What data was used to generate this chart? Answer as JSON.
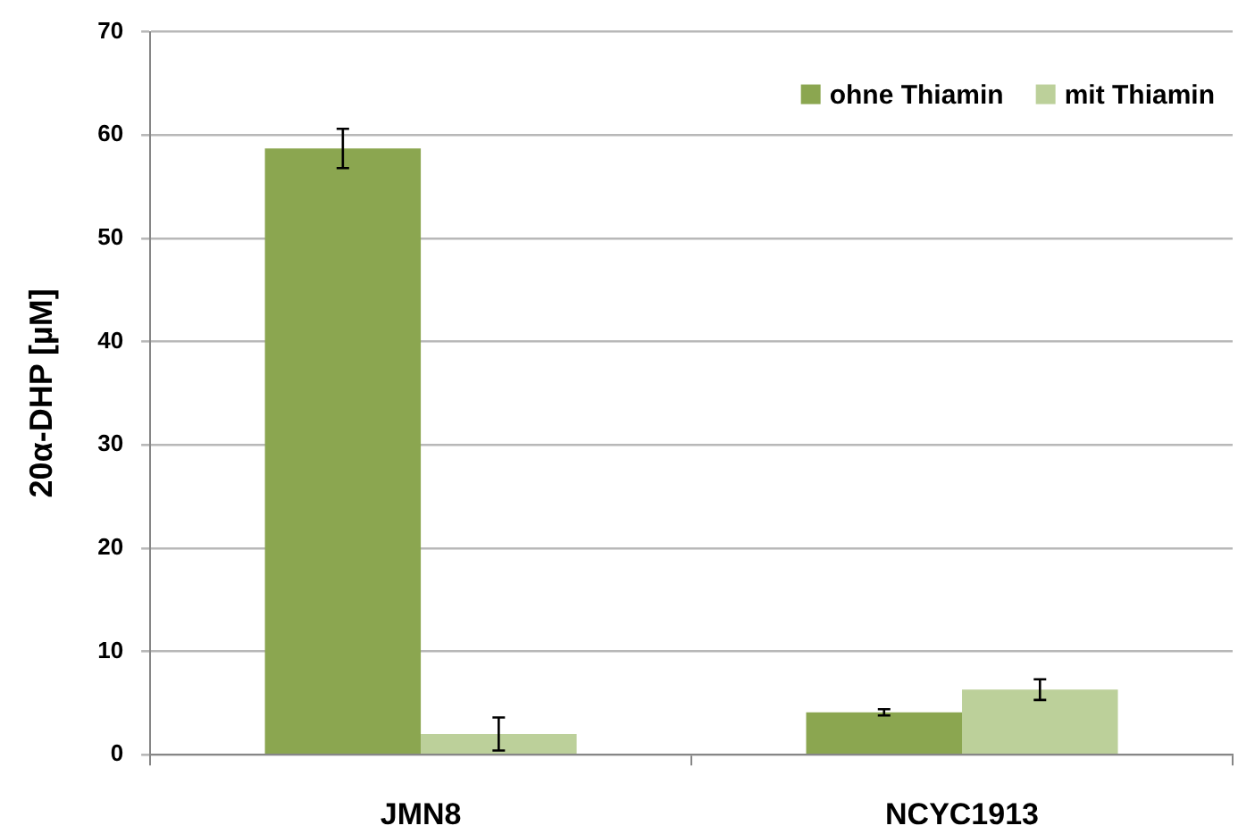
{
  "chart_data": {
    "type": "bar",
    "ylabel": "20α-DHP [µM]",
    "categories": [
      "JMN8",
      "NCYC1913"
    ],
    "series": [
      {
        "name": "ohne Thiamin",
        "color": "#8ba650",
        "values": [
          58.7,
          4.1
        ],
        "errors": [
          1.9,
          0.3
        ]
      },
      {
        "name": "mit Thiamin",
        "color": "#bcd09a",
        "values": [
          2.0,
          6.3
        ],
        "errors": [
          1.6,
          1.0
        ]
      }
    ],
    "ylim": [
      0,
      70
    ],
    "yticks": [
      0,
      10,
      20,
      30,
      40,
      50,
      60,
      70
    ],
    "grid": "y",
    "legend": "top right"
  }
}
